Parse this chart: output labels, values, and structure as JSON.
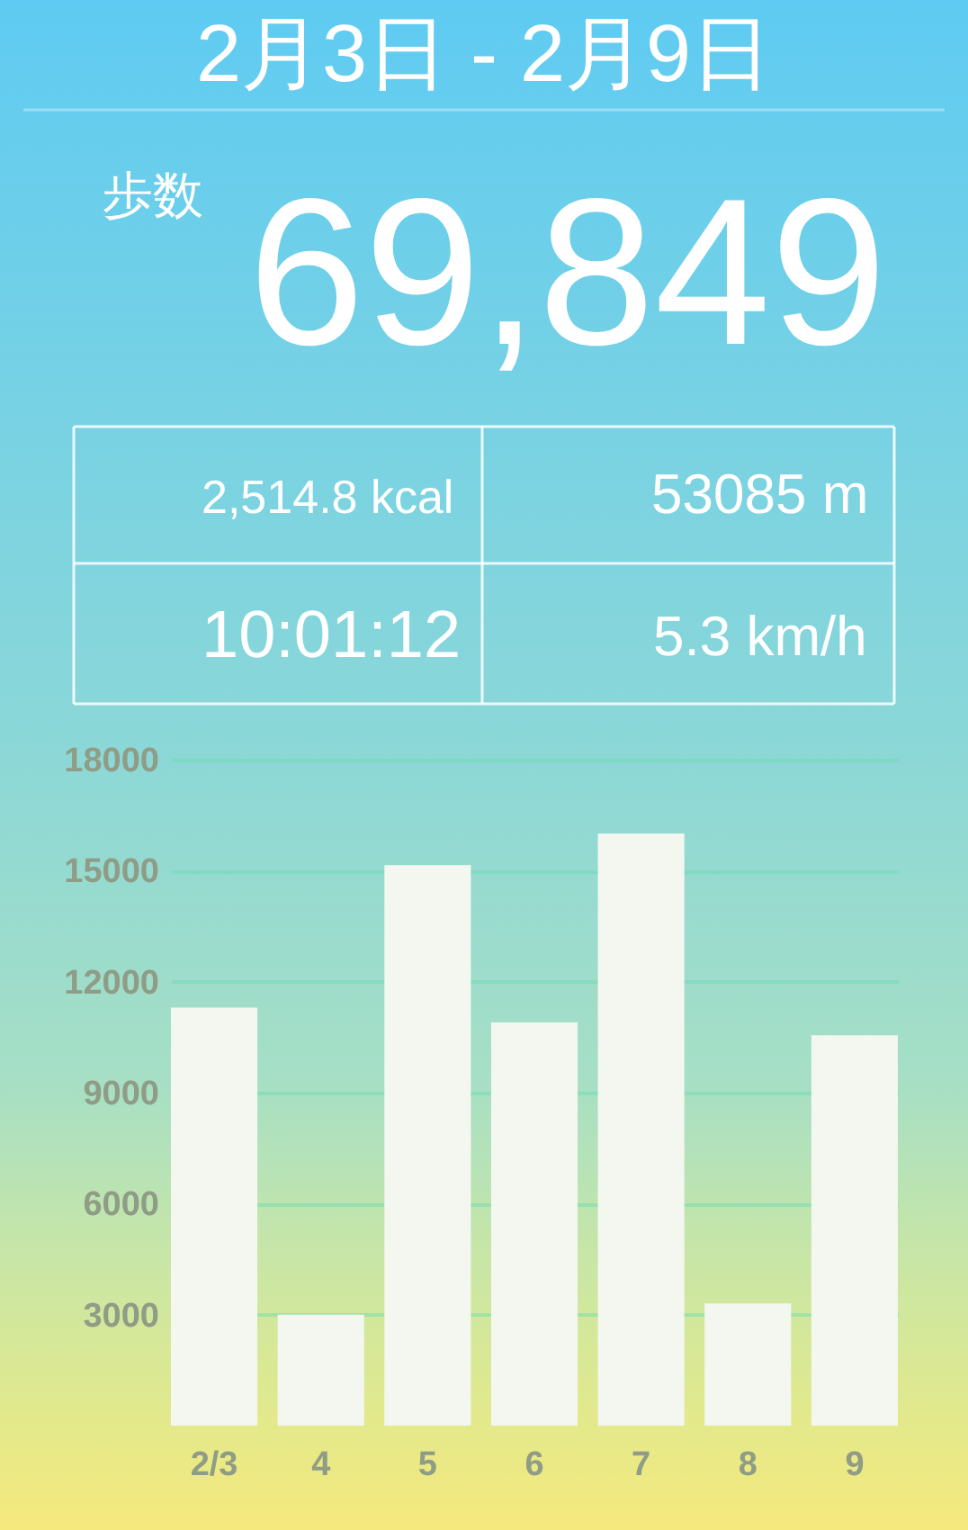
{
  "chart_data": [
    {
      "type": "other",
      "title": "2月3日 - 2月9日",
      "annotations": [
        "歩数",
        "69,849",
        "2,514.8 kcal",
        "53085 m",
        "10:01:12",
        "5.3 km/h"
      ]
    },
    {
      "type": "bar",
      "categories": [
        "2/3",
        "4",
        "5",
        "6",
        "7",
        "8",
        "9"
      ],
      "values": [
        11300,
        3000,
        15150,
        10900,
        16000,
        3300,
        10550
      ],
      "color": "#f3f7f0",
      "ylim": [
        0,
        18000
      ],
      "yticks": [
        3000,
        6000,
        9000,
        12000,
        15000,
        18000
      ],
      "grid": "y"
    }
  ]
}
